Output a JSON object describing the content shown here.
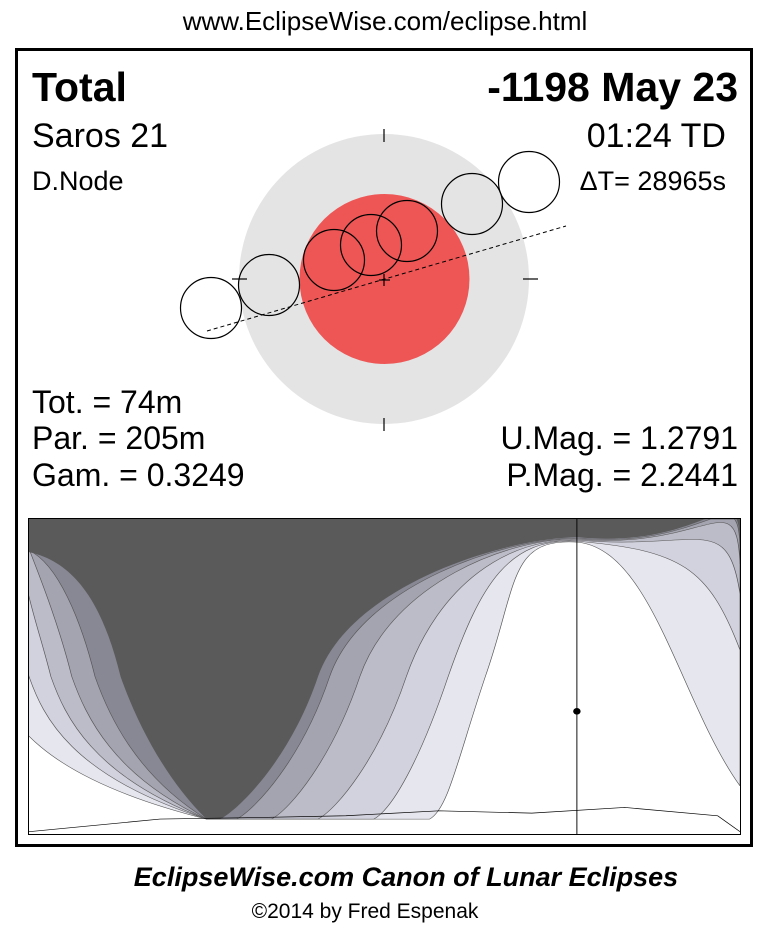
{
  "header": {
    "url": "www.EclipseWise.com/eclipse.html"
  },
  "eclipse": {
    "type": "Total",
    "date": "-1198 May 23",
    "saros": "Saros  21",
    "time": "01:24 TD",
    "node": "D.Node",
    "delta_t": "ΔT=  28965s",
    "tot": "Tot. =  74m",
    "par": "Par. = 205m",
    "gam": "Gam. = 0.3249",
    "umag": "U.Mag. = 1.2791",
    "pmag": "P.Mag. = 2.2441"
  },
  "colors": {
    "umbra": "#ee5656",
    "penumbra": "#e4e4e4",
    "no_eclipse": "#5a5a5a",
    "bands": [
      "#e6e6ef",
      "#d2d2de",
      "#bcbcc8",
      "#a4a4b0",
      "#888894"
    ]
  },
  "footer": {
    "title": "EclipseWise.com Canon of Lunar Eclipses",
    "copyright": "©2014 by Fred Espenak"
  }
}
